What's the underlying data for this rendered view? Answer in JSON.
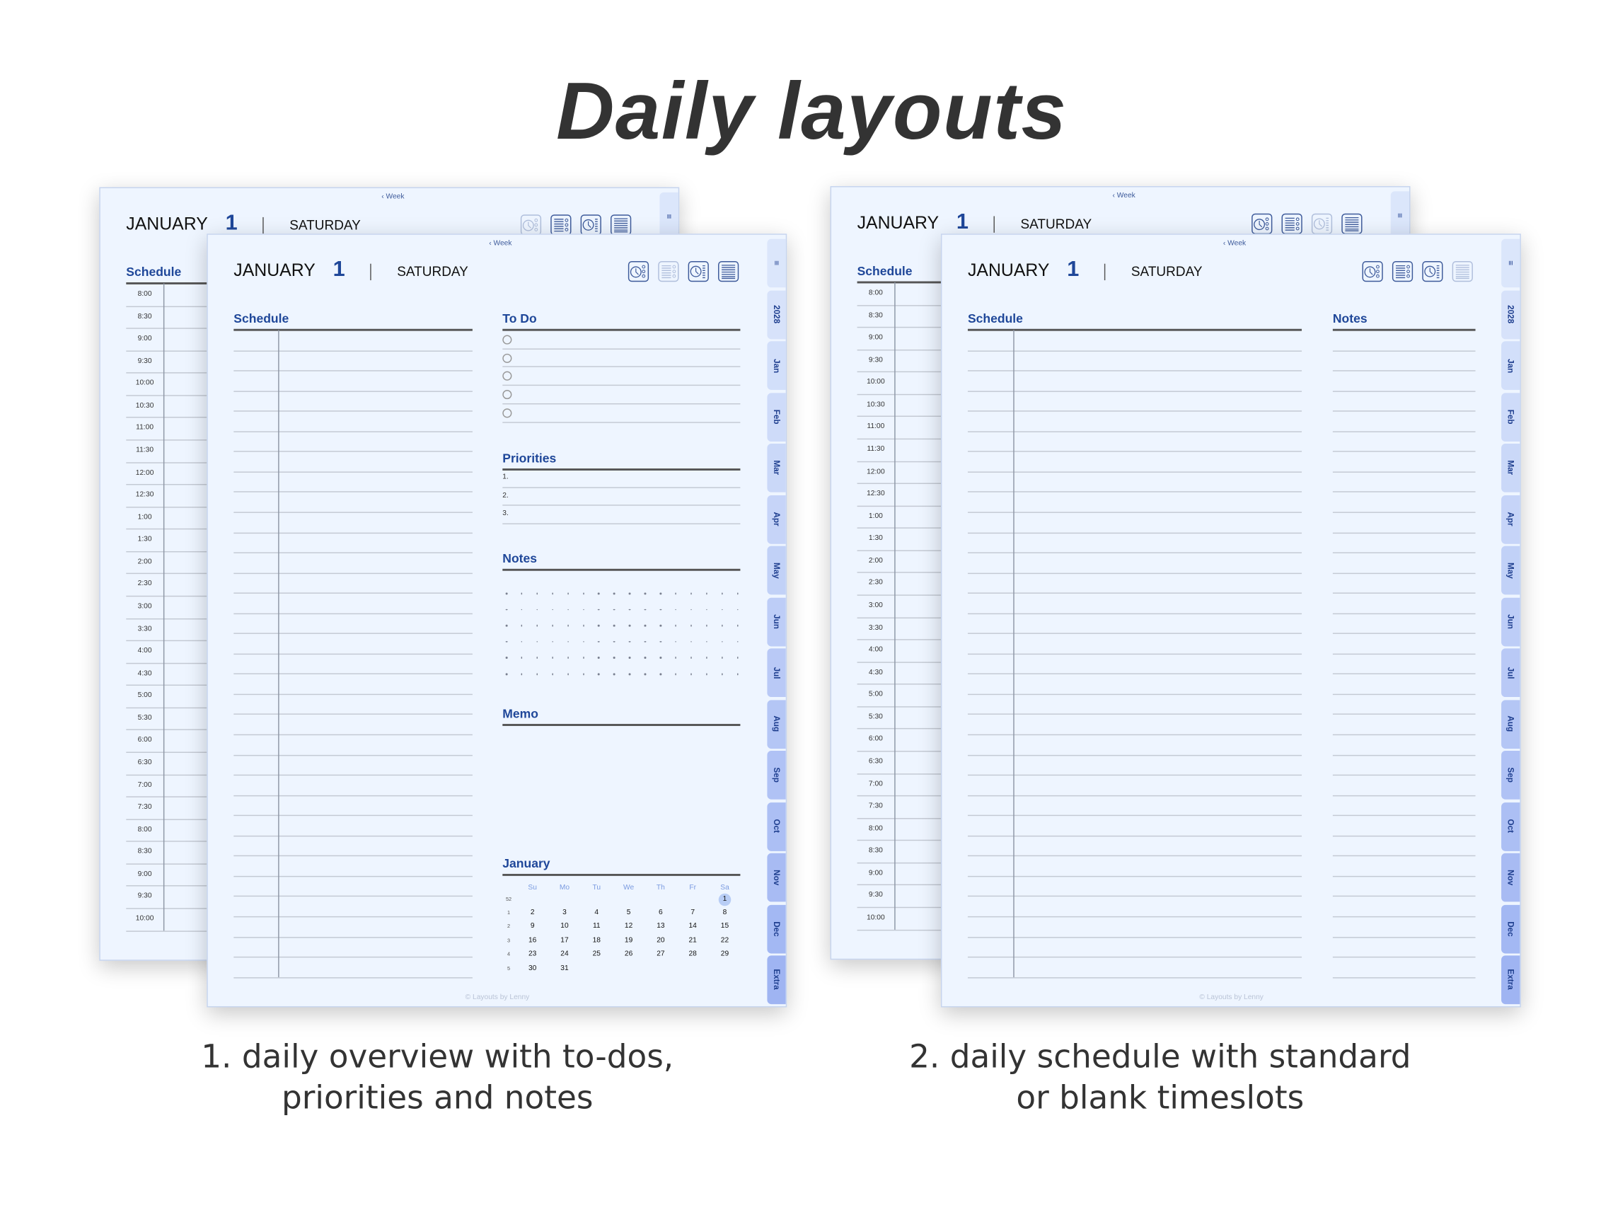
{
  "title": "Daily layouts",
  "captions": {
    "left": [
      "1. daily overview with to-dos,",
      "priorities and notes"
    ],
    "right": [
      "2. daily schedule with standard",
      "or blank timeslots"
    ]
  },
  "page": {
    "week_link": "‹ Week",
    "month": "JANUARY",
    "day": "1",
    "weekday": "SATURDAY",
    "copyright": "© Layouts by Lenny"
  },
  "view_icons": [
    "clock-dots-icon",
    "list-dots-icon",
    "clock-list-icon",
    "list-icon"
  ],
  "dimmed_view_icon": {
    "back_left": 0,
    "front_left": 1,
    "back_right": 2,
    "front_right": 3
  },
  "tabs": [
    "≡",
    "2028",
    "Jan",
    "Feb",
    "Mar",
    "Apr",
    "May",
    "Jun",
    "Jul",
    "Aug",
    "Sep",
    "Oct",
    "Nov",
    "Dec",
    "Extra"
  ],
  "sections": {
    "schedule": "Schedule",
    "todo": "To Do",
    "priorities": "Priorities",
    "notes": "Notes",
    "memo": "Memo",
    "calendar_month": "January"
  },
  "priorities": [
    "1.",
    "2.",
    "3."
  ],
  "times": [
    "8:00",
    "8:30",
    "9:00",
    "9:30",
    "10:00",
    "10:30",
    "11:00",
    "11:30",
    "12:00",
    "12:30",
    "1:00",
    "1:30",
    "2:00",
    "2:30",
    "3:00",
    "3:30",
    "4:00",
    "4:30",
    "5:00",
    "5:30",
    "6:00",
    "6:30",
    "7:00",
    "7:30",
    "8:00",
    "8:30",
    "9:00",
    "9:30",
    "10:00"
  ],
  "calendar": {
    "weekdays": [
      "Su",
      "Mo",
      "Tu",
      "We",
      "Th",
      "Fr",
      "Sa"
    ],
    "weeks": [
      {
        "week": "52",
        "days": [
          "",
          "",
          "",
          "",
          "",
          "",
          "1"
        ]
      },
      {
        "week": "1",
        "days": [
          "2",
          "3",
          "4",
          "5",
          "6",
          "7",
          "8"
        ]
      },
      {
        "week": "2",
        "days": [
          "9",
          "10",
          "11",
          "12",
          "13",
          "14",
          "15"
        ]
      },
      {
        "week": "3",
        "days": [
          "16",
          "17",
          "18",
          "19",
          "20",
          "21",
          "22"
        ]
      },
      {
        "week": "4",
        "days": [
          "23",
          "24",
          "25",
          "26",
          "27",
          "28",
          "29"
        ]
      },
      {
        "week": "5",
        "days": [
          "30",
          "31",
          "",
          "",
          "",
          "",
          ""
        ]
      }
    ],
    "selected": "1"
  },
  "colors": {
    "page_bg": "#eef5ff",
    "accent": "#1f4799",
    "tab_top": "#dbe6fb",
    "tab_bottom": "#9fb4f2",
    "selected_day": "#b8cdf5"
  }
}
